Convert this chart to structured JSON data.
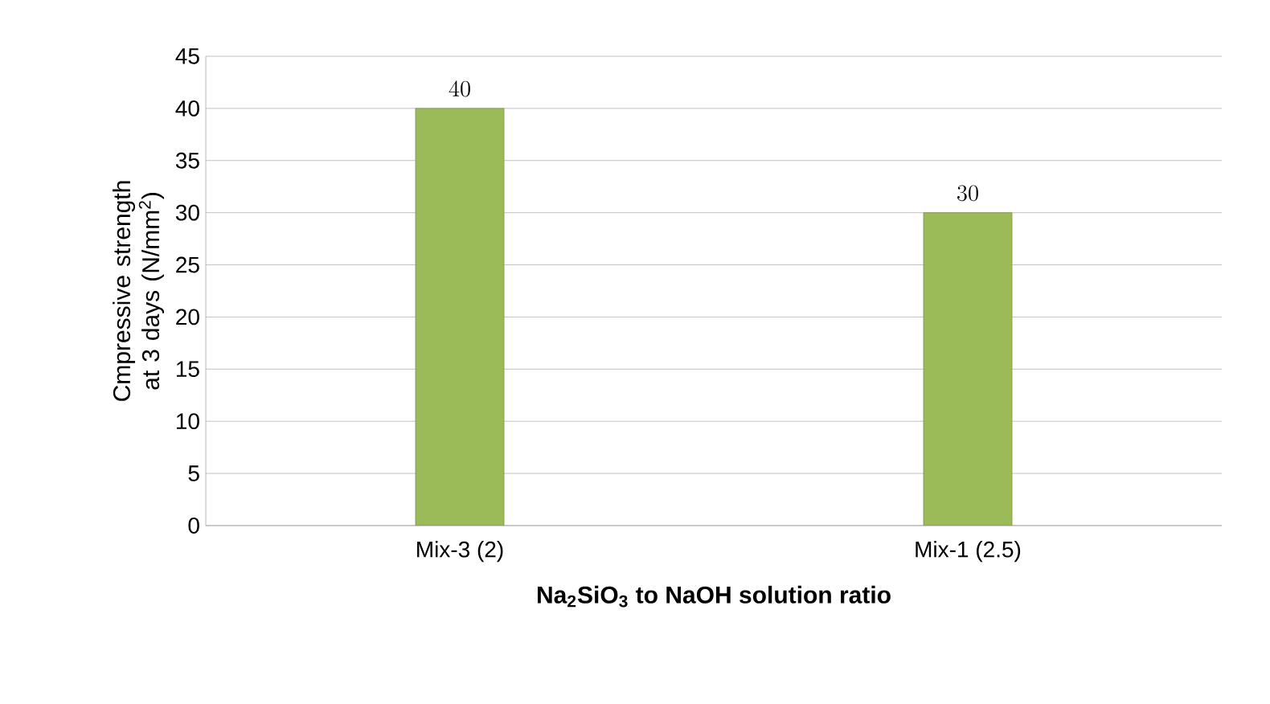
{
  "chart_data": {
    "type": "bar",
    "xlabel": "Na$_{2}$SiO$_{3}$ to NaOH solution ratio",
    "ylabel": "Cmpressive strength at 3 days (N/mm$^{2}$)",
    "categories": [
      "Mix-3 (2)",
      "Mix-1 (2.5)"
    ],
    "values": [
      40,
      30
    ],
    "color": "#9bbb59",
    "ylim": [
      0,
      45
    ],
    "yticks": [
      0,
      5,
      10,
      15,
      20,
      25,
      30,
      35,
      40,
      45
    ],
    "grid": "y",
    "data_labels": true
  }
}
